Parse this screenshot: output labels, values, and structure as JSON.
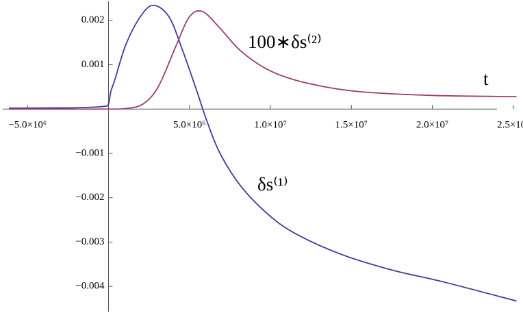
{
  "chart_data": {
    "type": "line",
    "annotations": [
      "100∗δs⁽²⁾",
      "δs⁽¹⁾",
      "t"
    ],
    "xlim": [
      -6700000,
      25600000
    ],
    "ylim": [
      -0.0046,
      0.00246
    ],
    "xticks": [
      {
        "value": -5000000,
        "label": "−5.0×10⁶"
      },
      {
        "value": 5000000,
        "label": "5.0×10⁶"
      },
      {
        "value": 10000000,
        "label": "1.0×10⁷"
      },
      {
        "value": 15000000,
        "label": "1.5×10⁷"
      },
      {
        "value": 20000000,
        "label": "2.0×10⁷"
      },
      {
        "value": 25000000,
        "label": "2.5×10⁷"
      }
    ],
    "yticks": [
      {
        "value": -0.004,
        "label": "−0.004"
      },
      {
        "value": -0.003,
        "label": "−0.003"
      },
      {
        "value": -0.002,
        "label": "−0.002"
      },
      {
        "value": -0.001,
        "label": "−0.001"
      },
      0.001,
      0.002
    ],
    "series": [
      {
        "color": "#3d3b9c",
        "x": [
          -6150000,
          -4000000,
          -2000000,
          -300000,
          0,
          150000,
          400000,
          1070000,
          1960000,
          2760000,
          3740000,
          4600000,
          5500000,
          6000000,
          6850000,
          8200000,
          10000000,
          11700000,
          14400000,
          17500000,
          20700000,
          25200000
        ],
        "values": [
          2e-05,
          2.5e-05,
          3e-05,
          6e-05,
          0.00012,
          0.0004,
          0.00067,
          0.00145,
          0.00208,
          0.00234,
          0.00208,
          0.0013,
          0.00036,
          -0.00019,
          -0.00097,
          -0.00175,
          -0.00242,
          -0.00284,
          -0.00328,
          -0.00363,
          -0.0039,
          -0.00433
        ]
      },
      {
        "color": "#993d71",
        "x": [
          -6150000,
          -2000000,
          0,
          1000000,
          1960000,
          2700000,
          3300000,
          4200000,
          5000000,
          5800000,
          6850000,
          8200000,
          10000000,
          12200000,
          15300000,
          19800000,
          25200000
        ],
        "values": [
          0,
          0,
          0,
          1e-05,
          8e-05,
          0.0003,
          0.00067,
          0.00145,
          0.00208,
          0.0022,
          0.00184,
          0.0013,
          0.00086,
          0.00059,
          0.0004,
          0.00031,
          0.00028
        ]
      }
    ]
  }
}
